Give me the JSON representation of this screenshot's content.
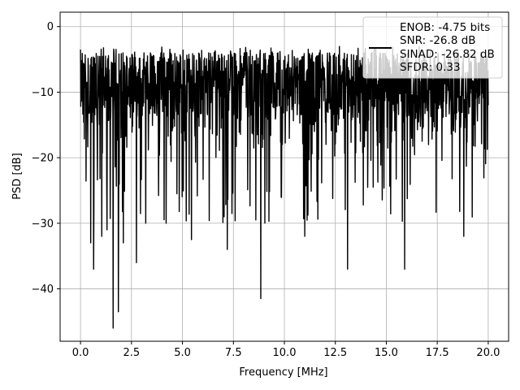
{
  "chart_data": {
    "type": "line",
    "title": "",
    "xlabel": "Frequency [MHz]",
    "ylabel": "PSD [dB]",
    "xlim": [
      -1.0,
      21.0
    ],
    "ylim": [
      -48.0,
      2.2
    ],
    "xticks": [
      0.0,
      2.5,
      5.0,
      7.5,
      10.0,
      12.5,
      15.0,
      17.5,
      20.0
    ],
    "xtick_labels": [
      "0.0",
      "2.5",
      "5.0",
      "7.5",
      "10.0",
      "12.5",
      "15.0",
      "17.5",
      "20.0"
    ],
    "yticks": [
      0,
      -10,
      -20,
      -30,
      -40
    ],
    "ytick_labels": [
      "0",
      "−10",
      "−20",
      "−30",
      "−40"
    ],
    "grid": true,
    "legend_position": "top-right",
    "series": [
      {
        "color": "#000000",
        "legend_lines": [
          "ENOB: -4.75 bits",
          "SNR: -26.8 dB",
          "SINAD: -26.82 dB",
          "SFDR: 0.33"
        ],
        "x_range": [
          0.0,
          20.0
        ],
        "envelope_upper_db": -4,
        "envelope_lower_db": -22,
        "notable_points": [
          {
            "x": 0.0,
            "y": -3.5
          },
          {
            "x": 0.5,
            "y": -33
          },
          {
            "x": 0.65,
            "y": -37
          },
          {
            "x": 1.05,
            "y": -32
          },
          {
            "x": 1.3,
            "y": -31
          },
          {
            "x": 1.6,
            "y": -46
          },
          {
            "x": 1.85,
            "y": -43.5
          },
          {
            "x": 2.1,
            "y": -33
          },
          {
            "x": 2.75,
            "y": -36
          },
          {
            "x": 3.2,
            "y": -30
          },
          {
            "x": 4.2,
            "y": -30
          },
          {
            "x": 5.45,
            "y": -32.5
          },
          {
            "x": 7.2,
            "y": -34
          },
          {
            "x": 8.85,
            "y": -41.5
          },
          {
            "x": 11.0,
            "y": -32
          },
          {
            "x": 13.1,
            "y": -37
          },
          {
            "x": 15.9,
            "y": -37
          },
          {
            "x": 18.8,
            "y": -32
          },
          {
            "x": 20.0,
            "y": -12
          }
        ]
      }
    ]
  }
}
